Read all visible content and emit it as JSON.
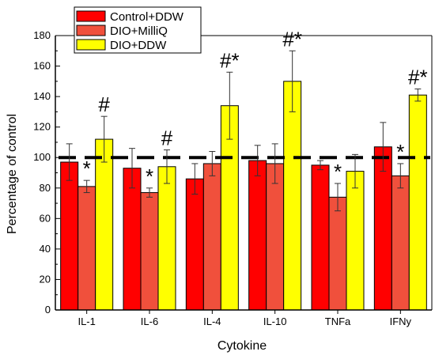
{
  "chart_data": {
    "type": "bar",
    "xlabel": "Cytokine",
    "ylabel": "Percentage of control",
    "ylim": [
      0,
      180
    ],
    "yticks": [
      0,
      20,
      40,
      60,
      80,
      100,
      120,
      140,
      160,
      180
    ],
    "categories": [
      "IL-1",
      "IL-6",
      "IL-4",
      "IL-10",
      "TNFa",
      "IFNy"
    ],
    "series": [
      {
        "name": "Control+DDW",
        "color": "#ff0000",
        "values": [
          97,
          93,
          86,
          98,
          95,
          107
        ],
        "errors": [
          12,
          13,
          10,
          10,
          3,
          16
        ],
        "annotations": [
          "",
          "",
          "",
          "",
          "",
          ""
        ]
      },
      {
        "name": "DIO+MilliQ",
        "color": "#f0503c",
        "values": [
          81,
          77,
          96,
          96,
          74,
          88
        ],
        "errors": [
          4,
          3,
          8,
          13,
          9,
          8
        ],
        "annotations": [
          "*",
          "*",
          "",
          "",
          "*",
          "*"
        ]
      },
      {
        "name": "DIO+DDW",
        "color": "#ffff00",
        "values": [
          112,
          94,
          134,
          150,
          91,
          141
        ],
        "errors": [
          15,
          11,
          22,
          20,
          11,
          4
        ],
        "annotations": [
          "#",
          "#",
          "#*",
          "#*",
          "",
          "#*"
        ]
      }
    ],
    "reference_line": {
      "value": 100,
      "style": "dashed"
    },
    "legend_position": "top-left",
    "grid": false
  }
}
